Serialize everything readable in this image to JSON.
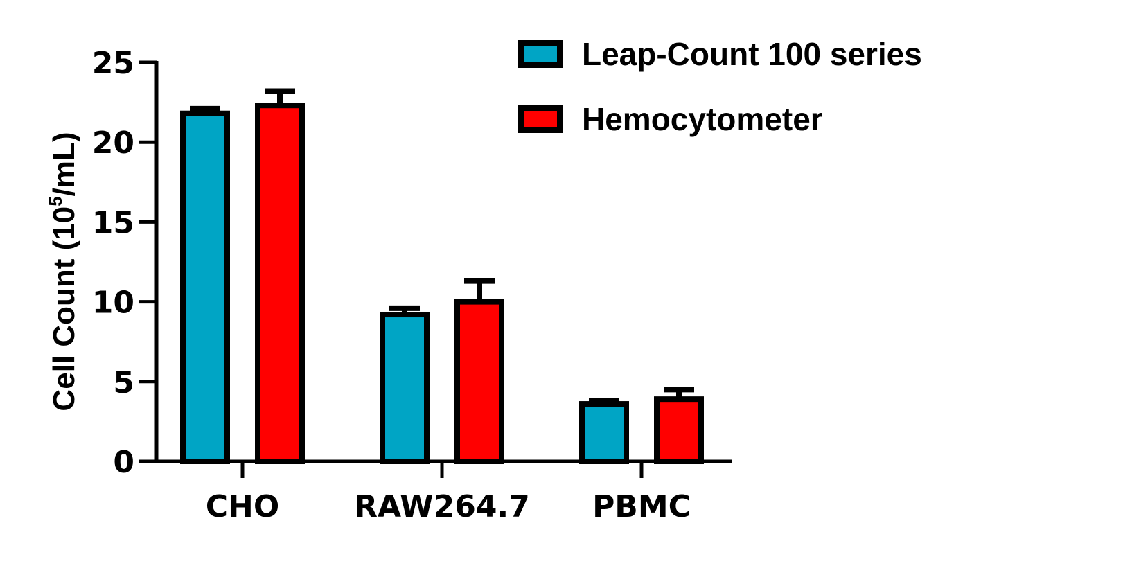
{
  "chart_data": {
    "type": "bar",
    "categories": [
      "CHO",
      "RAW264.7",
      "PBMC"
    ],
    "series": [
      {
        "name": "Leap-Count 100 series",
        "color": "#00A5C5",
        "values": [
          21.8,
          9.2,
          3.6
        ],
        "errors": [
          0.3,
          0.4,
          0.2
        ]
      },
      {
        "name": "Hemocytometer",
        "color": "#FF0000",
        "values": [
          22.3,
          10.0,
          3.9
        ],
        "errors": [
          0.9,
          1.3,
          0.6
        ]
      }
    ],
    "ylabel_main": "Cell Count (10",
    "ylabel_sup": "5",
    "ylabel_tail": "/mL)",
    "yticks": [
      0,
      5,
      10,
      15,
      20,
      25
    ],
    "ylim": [
      0,
      25
    ],
    "legend_position": "top-right",
    "grid": false
  }
}
